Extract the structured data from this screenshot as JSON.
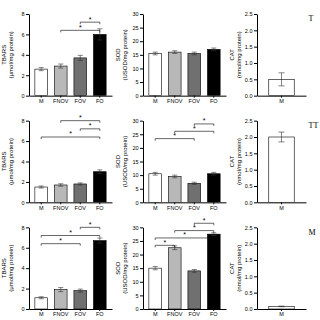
{
  "chart_data": [
    {
      "type": "bar",
      "categories": [
        "M",
        "FNOV",
        "FOV",
        "FO"
      ],
      "values": [
        2.6,
        2.9,
        3.7,
        6.0
      ],
      "errors": [
        0.15,
        0.2,
        0.25,
        0.55
      ],
      "colors": [
        "white",
        "#b8b8b8",
        "#707070",
        "black"
      ],
      "ylim": [
        0,
        8
      ],
      "yticks": [
        0,
        2,
        4,
        6,
        8
      ],
      "y_label": "TBARS\n(μmol/mg protein)",
      "annotations": [
        {
          "text": "*",
          "categories": [
            "FNOV",
            "FO"
          ]
        },
        {
          "text": "*",
          "categories": [
            "FOV",
            "FO"
          ]
        }
      ]
    },
    {
      "type": "bar",
      "categories": [
        "M",
        "FNOV",
        "FOV",
        "FO"
      ],
      "values": [
        15.5,
        16.0,
        15.5,
        17.0
      ],
      "errors": [
        0.5,
        0.5,
        0.5,
        0.5
      ],
      "colors": [
        "white",
        "#b8b8b8",
        "#707070",
        "black"
      ],
      "ylim": [
        0,
        30
      ],
      "yticks": [
        0,
        5,
        10,
        15,
        20,
        25,
        30
      ],
      "y_label": "SOD\n(USOD/mg protein)"
    },
    {
      "type": "bar",
      "categories": [
        "M"
      ],
      "values": [
        0.5
      ],
      "errors": [
        0.2
      ],
      "colors": [
        "white"
      ],
      "ylim": [
        0,
        2.5
      ],
      "yticks": [
        {
          "value": 0,
          "label": "0.0"
        },
        0.5,
        {
          "value": 1,
          "label": "1.0"
        },
        1.5,
        {
          "value": 2,
          "label": "2.0"
        },
        2.5
      ],
      "y_label": "CAT\n(nmol/mg protein)",
      "annotations": [
        {
          "text": "T"
        }
      ]
    },
    {
      "type": "bar",
      "categories": [
        "M",
        "FNOV",
        "FOV",
        "FO"
      ],
      "values": [
        1.5,
        1.7,
        1.8,
        3.0
      ],
      "errors": [
        0.1,
        0.12,
        0.1,
        0.18
      ],
      "colors": [
        "white",
        "#b8b8b8",
        "#707070",
        "black"
      ],
      "ylim": [
        0,
        8
      ],
      "yticks": [
        0,
        2,
        4,
        6,
        8
      ],
      "y_label": "TBARS\n(μmol/mg protein)",
      "annotations": [
        {
          "text": "*",
          "categories": [
            "M",
            "FO"
          ]
        },
        {
          "text": "*",
          "categories": [
            "FOV",
            "FO"
          ]
        },
        {
          "text": "*",
          "categories": [
            "FNOV",
            "FO"
          ]
        }
      ]
    },
    {
      "type": "bar",
      "categories": [
        "M",
        "FNOV",
        "FOV",
        "FO"
      ],
      "values": [
        10.5,
        9.5,
        7.0,
        10.5
      ],
      "errors": [
        0.5,
        0.5,
        0.4,
        0.5
      ],
      "colors": [
        "white",
        "#b8b8b8",
        "#707070",
        "black"
      ],
      "ylim": [
        0,
        30
      ],
      "yticks": [
        0,
        5,
        10,
        15,
        20,
        25,
        30
      ],
      "y_label": "SOD\n(USOD/mg protein)",
      "annotations": [
        {
          "text": "*",
          "categories": [
            "M",
            "FOV"
          ]
        },
        {
          "text": "*",
          "categories": [
            "FNOV",
            "FO"
          ]
        },
        {
          "text": "*",
          "categories": [
            "FOV",
            "FO"
          ]
        }
      ]
    },
    {
      "type": "bar",
      "categories": [
        "M"
      ],
      "values": [
        2.0
      ],
      "errors": [
        0.15
      ],
      "colors": [
        "white"
      ],
      "ylim": [
        0,
        2.5
      ],
      "yticks": [
        {
          "value": 0,
          "label": "0.0"
        },
        0.5,
        {
          "value": 1,
          "label": "1.0"
        },
        1.5,
        {
          "value": 2,
          "label": "2.0"
        },
        2.5
      ],
      "y_label": "CAT\n(nmol/mg protein)",
      "annotations": [
        {
          "text": "TT"
        }
      ]
    },
    {
      "type": "bar",
      "categories": [
        "M",
        "FNOV",
        "FOV",
        "FO"
      ],
      "values": [
        1.1,
        1.9,
        1.8,
        6.7
      ],
      "errors": [
        0.1,
        0.2,
        0.15,
        0.25
      ],
      "colors": [
        "white",
        "#b8b8b8",
        "#707070",
        "black"
      ],
      "ylim": [
        0,
        8
      ],
      "yticks": [
        0,
        2,
        4,
        6,
        8
      ],
      "y_label": "TBARS\n(μmol/mg protein)",
      "annotations": [
        {
          "text": "*",
          "categories": [
            "M",
            "FOV"
          ]
        },
        {
          "text": "*",
          "categories": [
            "M",
            "FO"
          ]
        },
        {
          "text": "*",
          "categories": [
            "FOV",
            "FO"
          ]
        }
      ]
    },
    {
      "type": "bar",
      "categories": [
        "M",
        "FNOV",
        "FOV",
        "FO"
      ],
      "values": [
        15.0,
        22.5,
        14.0,
        27.5
      ],
      "errors": [
        0.6,
        0.7,
        0.5,
        0.5
      ],
      "colors": [
        "white",
        "#b8b8b8",
        "#707070",
        "black"
      ],
      "ylim": [
        0,
        30
      ],
      "yticks": [
        0,
        5,
        10,
        15,
        20,
        25,
        30
      ],
      "y_label": "SOD\n(USOD/mg protein)",
      "annotations": [
        {
          "text": "*",
          "categories": [
            "M",
            "FNOV"
          ]
        },
        {
          "text": "*",
          "categories": [
            "M",
            "FO"
          ]
        },
        {
          "text": "*",
          "categories": [
            "FNOV",
            "FO"
          ]
        },
        {
          "text": "*",
          "categories": [
            "FOV",
            "FO"
          ]
        }
      ]
    },
    {
      "type": "bar",
      "categories": [
        "M"
      ],
      "values": [
        0.08
      ],
      "errors": [
        0.01
      ],
      "colors": [
        "white"
      ],
      "ylim": [
        0,
        2.5
      ],
      "yticks": [
        {
          "value": 0,
          "label": "0.0"
        },
        0.5,
        {
          "value": 1,
          "label": "1.0"
        },
        1.5,
        {
          "value": 2,
          "label": "2.0"
        },
        2.5
      ],
      "y_label": "CAT\n(nmol/mg protein)",
      "annotations": [
        {
          "text": "M"
        }
      ]
    }
  ]
}
